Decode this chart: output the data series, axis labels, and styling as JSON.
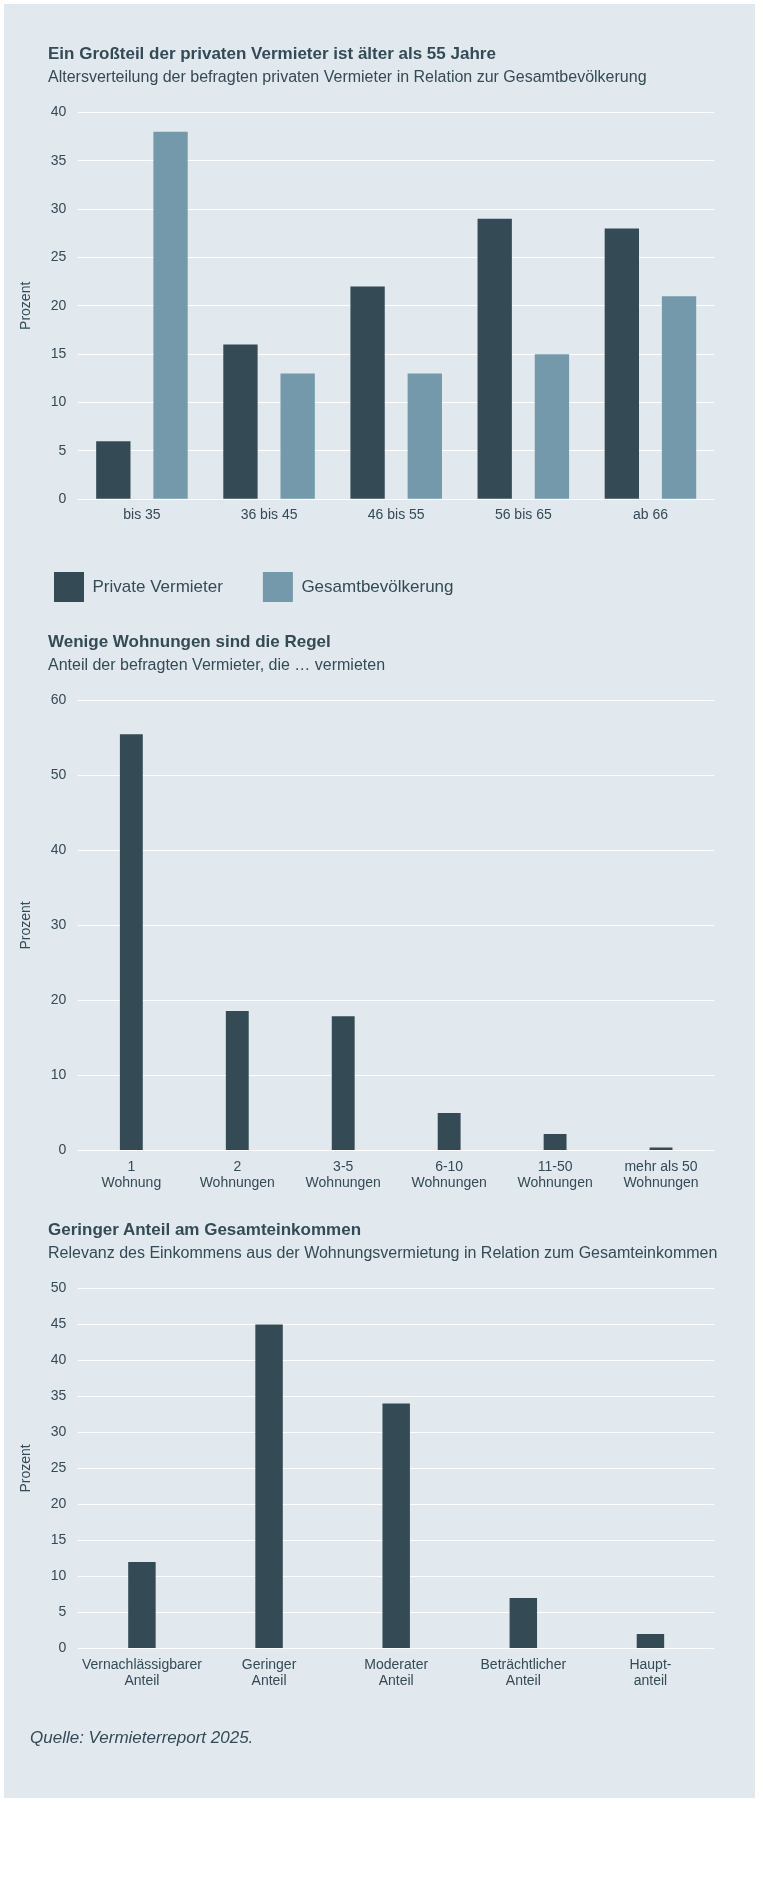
{
  "chart_data": [
    {
      "type": "bar",
      "title": "Ein Großteil der privaten Vermieter ist älter als 55 Jahre",
      "subtitle": "Altersverteilung der befragten privaten Vermieter in Relation zur Gesamtbevölkerung",
      "ylabel": "Prozent",
      "categories": [
        "bis 35",
        "36 bis 45",
        "46 bis 55",
        "56 bis 65",
        "ab 66"
      ],
      "series": [
        {
          "name": "Private Vermieter",
          "color": "#344a55",
          "values": [
            6,
            16,
            22,
            29,
            28
          ]
        },
        {
          "name": "Gesamtbevölkerung",
          "color": "#7399ab",
          "values": [
            38,
            13,
            13,
            15,
            21
          ]
        }
      ],
      "ylim": [
        0,
        40
      ],
      "yticks": [
        0,
        5,
        10,
        15,
        20,
        25,
        30,
        35,
        40
      ],
      "grid": "y",
      "legend": "bottom"
    },
    {
      "type": "bar",
      "title": "Wenige Wohnungen sind die Regel",
      "subtitle": "Anteil der befragten Vermieter, die … vermieten",
      "ylabel": "Prozent",
      "categories": [
        "1\nWohnung",
        "2\nWohnungen",
        "3-5\nWohnungen",
        "6-10\nWohnungen",
        "11-50\nWohnungen",
        "mehr als 50\nWohnungen"
      ],
      "values": [
        55.5,
        18.6,
        17.9,
        5.0,
        2.2,
        0.4
      ],
      "color": "#344a55",
      "ylim": [
        0,
        60
      ],
      "yticks": [
        0,
        10,
        20,
        30,
        40,
        50,
        60
      ],
      "grid": "y"
    },
    {
      "type": "bar",
      "title": "Geringer Anteil am Gesamteinkommen",
      "subtitle": "Relevanz des Einkommens aus der Wohnungsvermietung in Relation zum Gesamteinkommen",
      "ylabel": "Prozent",
      "categories": [
        "Vernachlässigbarer\nAnteil",
        "Geringer\nAnteil",
        "Moderater\nAnteil",
        "Beträchtlicher\nAnteil",
        "Haupt-\nanteil"
      ],
      "values": [
        12,
        45,
        34,
        7,
        2
      ],
      "color": "#344a55",
      "ylim": [
        0,
        50
      ],
      "yticks": [
        0,
        5,
        10,
        15,
        20,
        25,
        30,
        35,
        40,
        45,
        50
      ],
      "grid": "y",
      "annotations": [
        "Quelle: Vermieterreport 2025."
      ]
    }
  ]
}
